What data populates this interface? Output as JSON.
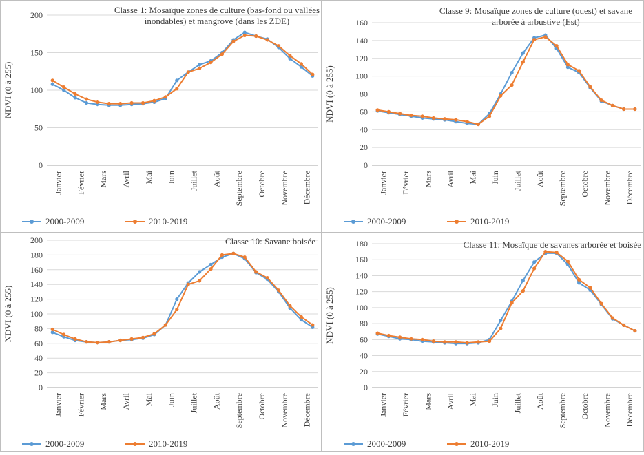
{
  "colors": {
    "series_a": "#5B9BD5",
    "series_b": "#ED7D31",
    "grid": "#d9d9d9",
    "frame": "#bfbfbf",
    "text": "#404040"
  },
  "chart_data": [
    {
      "type": "line",
      "title": "Classe 1: Mosaïque zones de culture (bas-fond ou vallées inondables) et mangrove (dans les ZDE)",
      "title_lines": [
        "Classe 1: Mosaïque zones de culture (bas-fond ou vallées",
        "inondables) et mangrove (dans les ZDE)"
      ],
      "xlabel": "",
      "ylabel": "NDVI (0 à 255)",
      "ylim": [
        0,
        200
      ],
      "yticks": [
        0,
        50,
        100,
        150,
        200
      ],
      "grid": true,
      "legend": "bottom",
      "month_labels": [
        "Janvier",
        "Février",
        "Mars",
        "Avril",
        "Mai",
        "Juin",
        "Juillet",
        "Août",
        "Septembre",
        "Octobre",
        "Novembre",
        "Décembre"
      ],
      "x": [
        1,
        2,
        3,
        4,
        5,
        6,
        7,
        8,
        9,
        10,
        11,
        12,
        13,
        14,
        15,
        16,
        17,
        18,
        19,
        20,
        21,
        22,
        23,
        24
      ],
      "series": [
        {
          "name": "2000-2009",
          "values": [
            108,
            100,
            90,
            83,
            81,
            80,
            80,
            81,
            82,
            84,
            89,
            113,
            124,
            134,
            139,
            150,
            167,
            177,
            172,
            168,
            157,
            142,
            131,
            119
          ]
        },
        {
          "name": "2010-2019",
          "values": [
            113,
            104,
            95,
            88,
            84,
            82,
            82,
            83,
            83,
            86,
            91,
            102,
            124,
            129,
            137,
            148,
            165,
            173,
            172,
            167,
            159,
            146,
            135,
            121
          ]
        }
      ]
    },
    {
      "type": "line",
      "title": "Classe 9: Mosaïque zones de culture (ouest) et savane arborée à arbustive (Est)",
      "title_lines": [
        "Classe 9: Mosaïque zones de culture (ouest) et savane",
        "arborée à arbustive (Est)"
      ],
      "xlabel": "",
      "ylabel": "NDVI (0 à 255)",
      "ylim": [
        0,
        160
      ],
      "yticks": [
        0,
        20,
        40,
        60,
        80,
        100,
        120,
        140,
        160
      ],
      "grid": true,
      "legend": "bottom",
      "month_labels": [
        "Janvier",
        "Février",
        "Mars",
        "Avril",
        "Mai",
        "Juin",
        "Juillet",
        "Août",
        "Septembre",
        "Octobre",
        "Novembre",
        "Décembre"
      ],
      "x": [
        1,
        2,
        3,
        4,
        5,
        6,
        7,
        8,
        9,
        10,
        11,
        12,
        13,
        14,
        15,
        16,
        17,
        18,
        19,
        20,
        21,
        22,
        23,
        24
      ],
      "series": [
        {
          "name": "2000-2009",
          "values": [
            61,
            59,
            57,
            55,
            53,
            52,
            51,
            49,
            47,
            46,
            58,
            80,
            104,
            126,
            143,
            146,
            131,
            110,
            104,
            87,
            72,
            67,
            63,
            63
          ]
        },
        {
          "name": "2010-2019",
          "values": [
            62,
            60,
            58,
            56,
            55,
            53,
            52,
            51,
            49,
            46,
            55,
            78,
            90,
            116,
            141,
            144,
            134,
            113,
            106,
            88,
            73,
            67,
            63,
            63
          ]
        }
      ]
    },
    {
      "type": "line",
      "title": "Classe 10: Savane boisée",
      "title_lines": [
        "Classe 10: Savane boisée"
      ],
      "xlabel": "",
      "ylabel": "NDVI (0 à 255)",
      "ylim": [
        0,
        200
      ],
      "yticks": [
        0,
        20,
        40,
        60,
        80,
        100,
        120,
        140,
        160,
        180,
        200
      ],
      "grid": true,
      "legend": "bottom",
      "month_labels": [
        "Janvier",
        "Février",
        "Mars",
        "Avril",
        "Mai",
        "Juin",
        "Juillet",
        "Août",
        "Septembre",
        "Octobre",
        "Novembre",
        "Décembre"
      ],
      "x": [
        1,
        2,
        3,
        4,
        5,
        6,
        7,
        8,
        9,
        10,
        11,
        12,
        13,
        14,
        15,
        16,
        17,
        18,
        19,
        20,
        21,
        22,
        23,
        24
      ],
      "series": [
        {
          "name": "2000-2009",
          "values": [
            75,
            69,
            64,
            62,
            61,
            62,
            64,
            65,
            67,
            72,
            85,
            120,
            142,
            157,
            167,
            177,
            182,
            175,
            156,
            147,
            130,
            108,
            92,
            82
          ]
        },
        {
          "name": "2010-2019",
          "values": [
            79,
            72,
            66,
            62,
            61,
            62,
            64,
            66,
            68,
            73,
            85,
            106,
            140,
            145,
            161,
            180,
            182,
            177,
            157,
            149,
            132,
            111,
            96,
            85
          ]
        }
      ]
    },
    {
      "type": "line",
      "title": "Classe 11: Mosaïque de savanes arborée et boisée",
      "title_lines": [
        "Classe 11: Mosaïque de savanes arborée et boisée"
      ],
      "xlabel": "",
      "ylabel": "NDVI (0 à 255)",
      "ylim": [
        0,
        180
      ],
      "yticks": [
        0,
        20,
        40,
        60,
        80,
        100,
        120,
        140,
        160,
        180
      ],
      "grid": true,
      "legend": "bottom",
      "month_labels": [
        "Janvier",
        "Février",
        "Mars",
        "Avril",
        "Mai",
        "Juin",
        "Juillet",
        "Août",
        "Septembre",
        "Octobre",
        "Novembre",
        "Décembre"
      ],
      "x": [
        1,
        2,
        3,
        4,
        5,
        6,
        7,
        8,
        9,
        10,
        11,
        12,
        13,
        14,
        15,
        16,
        17,
        18,
        19,
        20,
        21,
        22,
        23,
        24
      ],
      "series": [
        {
          "name": "2000-2009",
          "values": [
            67,
            64,
            61,
            60,
            58,
            57,
            56,
            55,
            55,
            56,
            60,
            84,
            108,
            134,
            157,
            168,
            168,
            154,
            131,
            122,
            104,
            86,
            78,
            71
          ]
        },
        {
          "name": "2010-2019",
          "values": [
            68,
            65,
            63,
            61,
            60,
            58,
            57,
            57,
            56,
            57,
            58,
            74,
            106,
            121,
            149,
            170,
            169,
            158,
            135,
            125,
            105,
            87,
            78,
            71
          ]
        }
      ]
    }
  ]
}
